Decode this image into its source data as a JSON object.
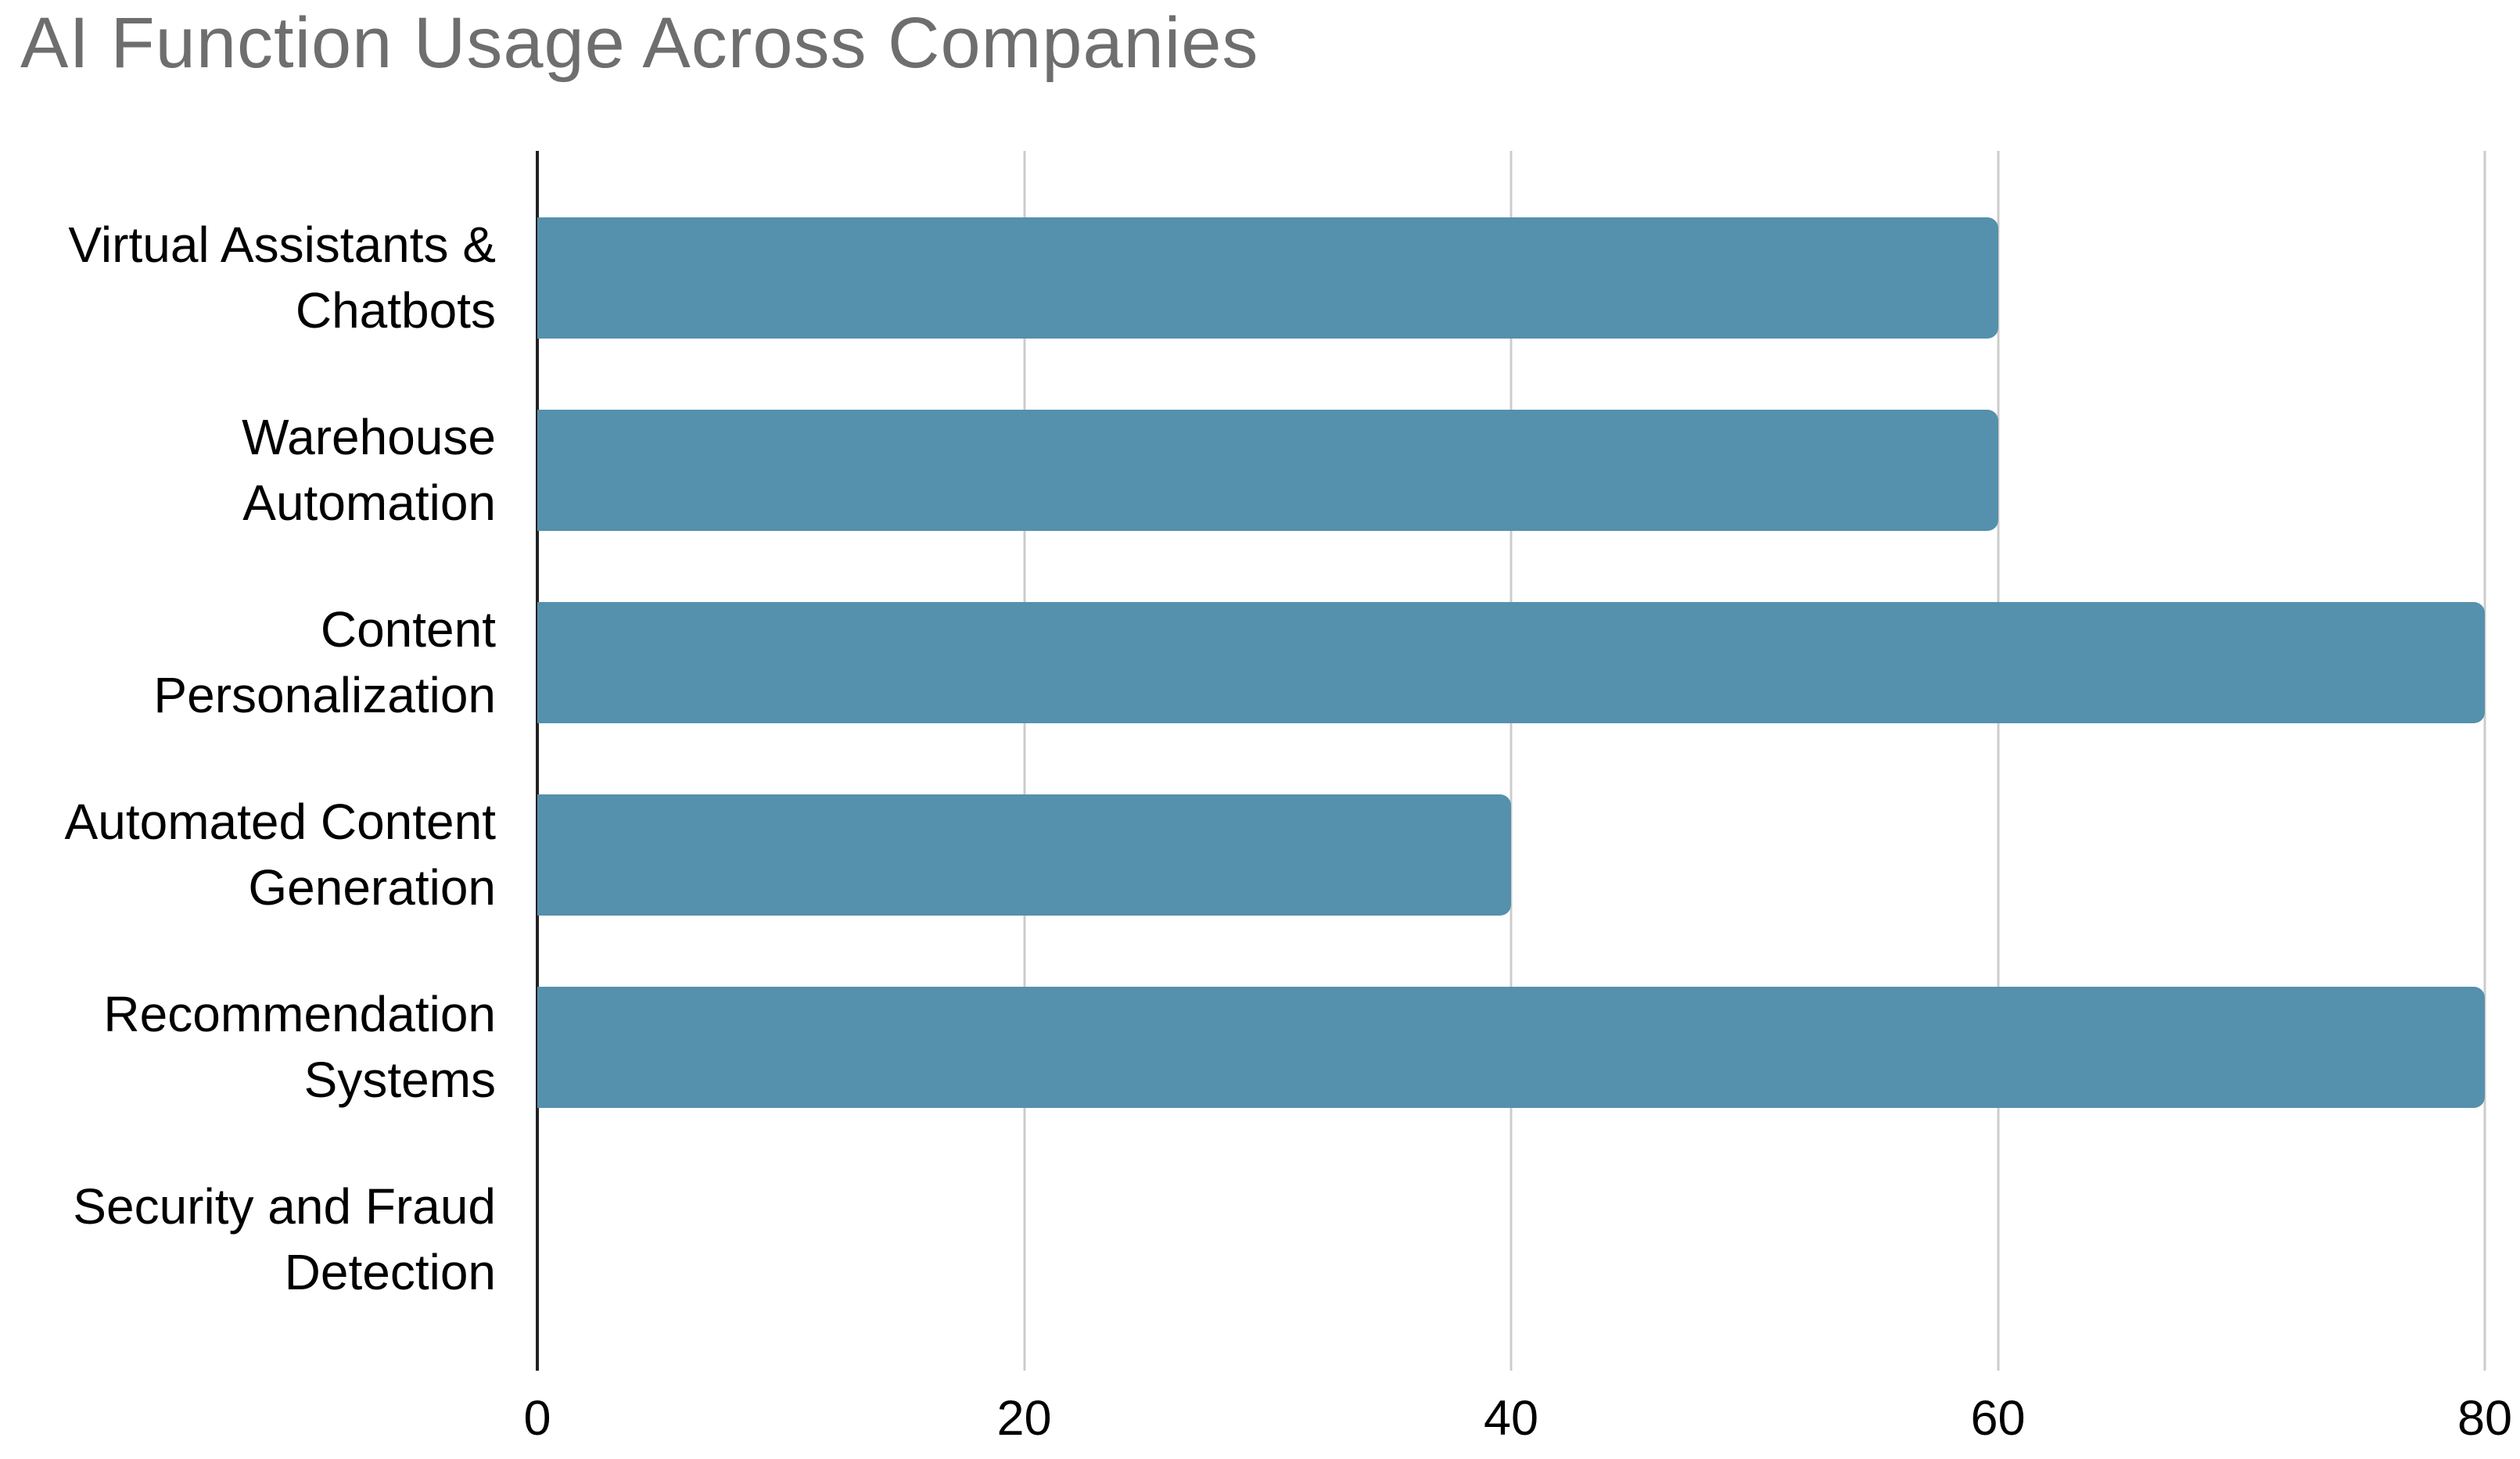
{
  "chart_data": {
    "type": "bar",
    "orientation": "horizontal",
    "title": "AI Function Usage Across Companies",
    "categories": [
      "Virtual Assistants & Chatbots",
      "Warehouse Automation",
      "Content Personalization",
      "Automated Content Generation",
      "Recommendation Systems",
      "Security and Fraud Detection"
    ],
    "category_lines": [
      [
        "Virtual Assistants &",
        "Chatbots"
      ],
      [
        "Warehouse",
        "Automation"
      ],
      [
        "Content",
        "Personalization"
      ],
      [
        "Automated Content",
        "Generation"
      ],
      [
        "Recommendation",
        "Systems"
      ],
      [
        "Security and Fraud",
        "Detection"
      ]
    ],
    "values": [
      60,
      60,
      80,
      40,
      80,
      0
    ],
    "xlabel": "",
    "ylabel": "",
    "xlim": [
      0,
      80
    ],
    "xticks": [
      0,
      20,
      40,
      60,
      80
    ],
    "grid": true,
    "legend": "none"
  },
  "colors": {
    "bar": "#5590ad",
    "title_text": "#6e6e6e",
    "axis_line": "#212121",
    "gridline": "#cccccc",
    "tick_text": "#000000",
    "category_text": "#000000",
    "background": "#ffffff"
  }
}
